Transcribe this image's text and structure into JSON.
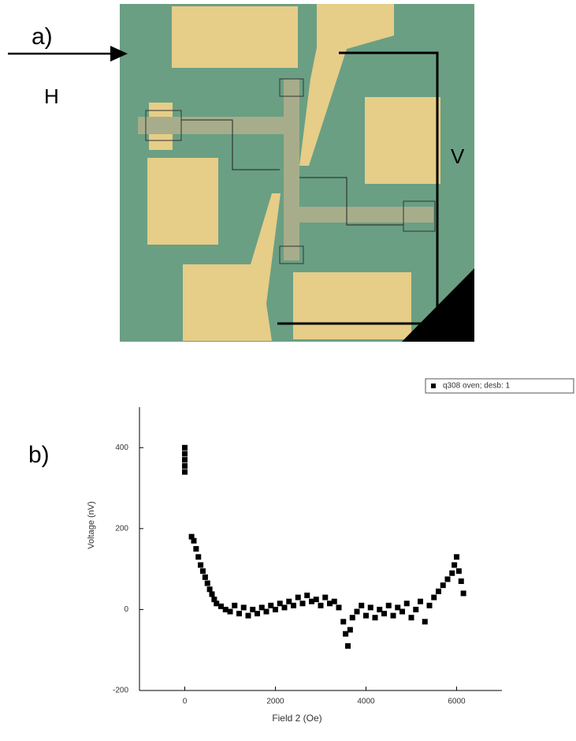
{
  "panel_a": {
    "label": "a)",
    "field_label": "H",
    "voltage_label": "V"
  },
  "panel_b_label": "b)",
  "chart_data": {
    "type": "scatter",
    "xlabel": "Field 2 (Oe)",
    "ylabel": "Voltage (nV)",
    "xlim": [
      -1000,
      7000
    ],
    "xticks": [
      0,
      2000,
      4000,
      6000
    ],
    "ylim": [
      -200,
      500
    ],
    "yticks": [
      -200,
      0,
      200,
      400
    ],
    "legend": "top-right",
    "series": [
      {
        "name": "q308 oven; desb: 1",
        "color": "#000000",
        "x": [
          0,
          0,
          0,
          0,
          0,
          150,
          200,
          250,
          300,
          350,
          400,
          450,
          500,
          550,
          600,
          650,
          700,
          800,
          900,
          1000,
          1100,
          1200,
          1300,
          1400,
          1500,
          1600,
          1700,
          1800,
          1900,
          2000,
          2100,
          2200,
          2300,
          2400,
          2500,
          2600,
          2700,
          2800,
          2900,
          3000,
          3100,
          3200,
          3300,
          3400,
          3500,
          3550,
          3600,
          3650,
          3700,
          3800,
          3900,
          4000,
          4100,
          4200,
          4300,
          4400,
          4500,
          4600,
          4700,
          4800,
          4900,
          5000,
          5100,
          5200,
          5300,
          5400,
          5500,
          5600,
          5700,
          5800,
          5900,
          5950,
          6000,
          6050,
          6100,
          6150
        ],
        "values": [
          400,
          385,
          370,
          355,
          340,
          180,
          170,
          150,
          130,
          110,
          95,
          80,
          65,
          50,
          38,
          25,
          15,
          8,
          0,
          -5,
          10,
          -10,
          5,
          -15,
          0,
          -10,
          5,
          -5,
          10,
          0,
          15,
          5,
          20,
          10,
          30,
          15,
          35,
          20,
          25,
          10,
          30,
          15,
          20,
          5,
          -30,
          -60,
          -90,
          -50,
          -20,
          -5,
          10,
          -15,
          5,
          -20,
          0,
          -10,
          10,
          -15,
          5,
          -5,
          15,
          -20,
          0,
          20,
          -30,
          10,
          30,
          45,
          60,
          75,
          90,
          110,
          130,
          95,
          70,
          40
        ]
      }
    ]
  }
}
